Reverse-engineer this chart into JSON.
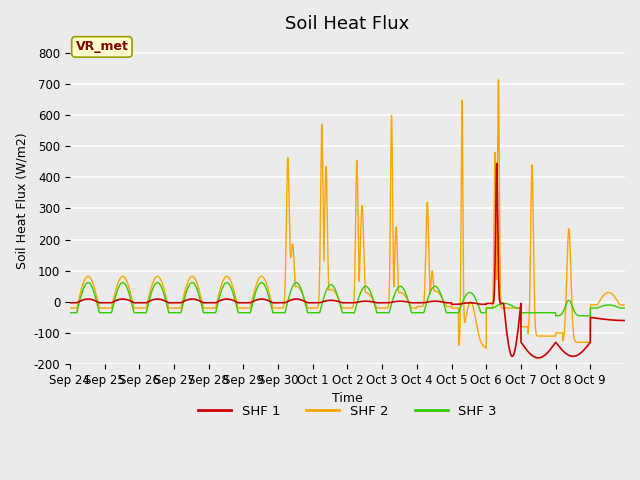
{
  "title": "Soil Heat Flux",
  "ylabel": "Soil Heat Flux (W/m2)",
  "xlabel": "Time",
  "ylim": [
    -200,
    850
  ],
  "yticks": [
    -200,
    -100,
    0,
    100,
    200,
    300,
    400,
    500,
    600,
    700,
    800
  ],
  "bg_color": "#ebebeb",
  "grid_color": "#ffffff",
  "shf1_color": "#cc0000",
  "shf2_color": "#ffa500",
  "shf3_color": "#33cc00",
  "legend_label1": "SHF 1",
  "legend_label2": "SHF 2",
  "legend_label3": "SHF 3",
  "annotation_text": "VR_met",
  "annotation_color": "#880000",
  "annotation_bg": "#ffffcc",
  "annotation_edge": "#999900",
  "title_fontsize": 13,
  "label_fontsize": 9,
  "tick_fontsize": 8.5
}
